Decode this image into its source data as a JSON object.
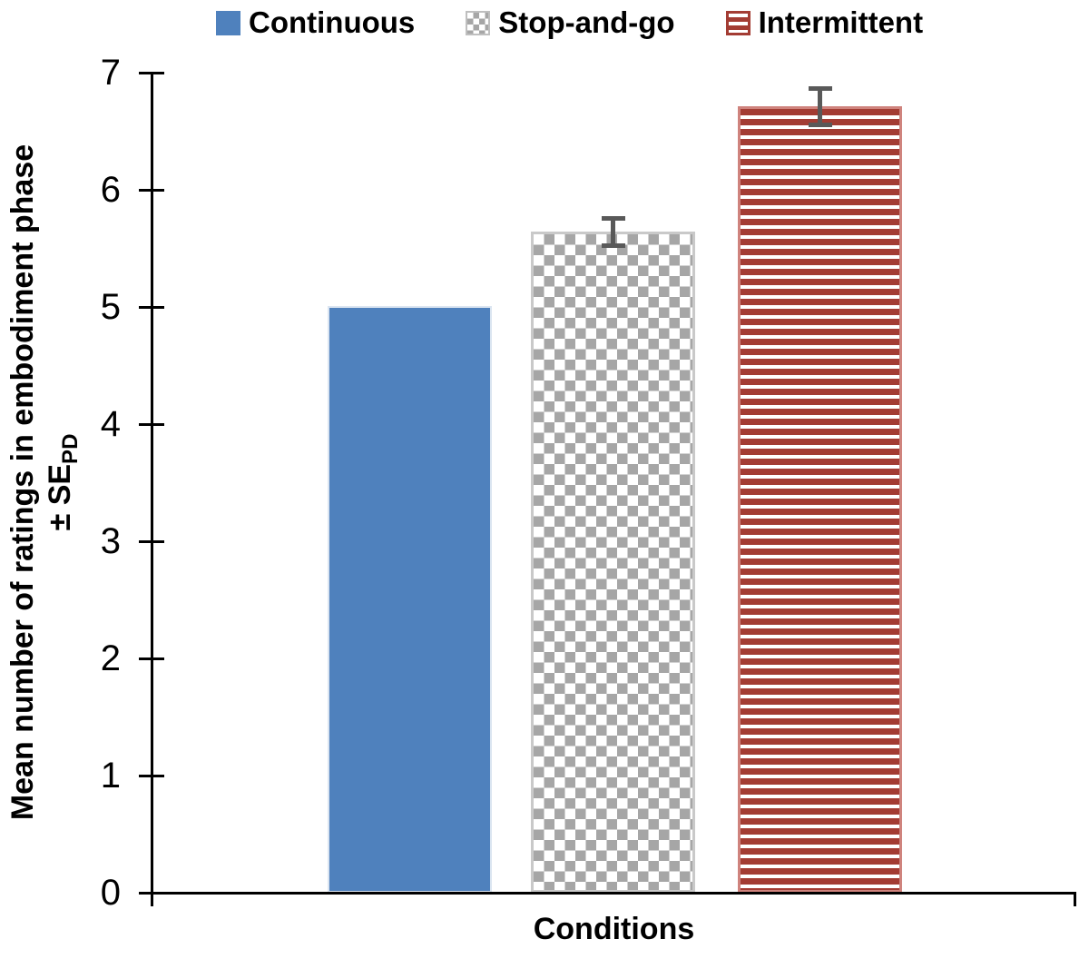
{
  "chart_data": {
    "type": "bar",
    "title": "",
    "xlabel": "Conditions",
    "ylabel": "Mean number of ratings in embodiment phase ± SE_PD",
    "ylabel_line1": "Mean number of ratings in embodiment phase",
    "ylabel_line2_base": "± SE",
    "ylabel_line2_sub": "PD",
    "categories": [
      "Continuous",
      "Stop-and-go",
      "Intermittent"
    ],
    "values": [
      5.01,
      5.64,
      6.71
    ],
    "standard_errors": [
      0,
      0.12,
      0.16
    ],
    "ylim": [
      0,
      7
    ],
    "yticks": [
      0,
      1,
      2,
      3,
      4,
      5,
      6,
      7
    ],
    "grid": false,
    "legend_position": "top",
    "bar_styles": [
      {
        "name": "solid",
        "color": "#4F81BD"
      },
      {
        "name": "checker",
        "color": "#A6A6A6"
      },
      {
        "name": "horizontal-stripes",
        "color": "#A33C33"
      }
    ],
    "error_bar_color": "#595959",
    "axis_color": "#000000"
  },
  "legend": {
    "items": [
      {
        "label": "Continuous",
        "swatch": "solid-blue-square"
      },
      {
        "label": "Stop-and-go",
        "swatch": "gray-checker-square"
      },
      {
        "label": "Intermittent",
        "swatch": "red-horizontal-stripe-square"
      }
    ]
  }
}
